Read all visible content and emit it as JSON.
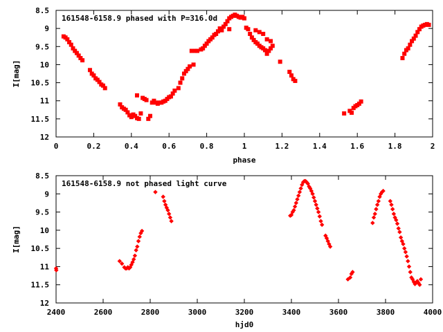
{
  "chart_data": [
    {
      "type": "scatter",
      "title": "161548-6158.9 phased with P=316.0d",
      "xlabel": "phase",
      "ylabel": "I[mag]",
      "xlim": [
        0,
        2
      ],
      "ylim": [
        12,
        8.5
      ],
      "y_inverted": true,
      "xticks": [
        "0",
        "0.2",
        "0.4",
        "0.6",
        "0.8",
        "1",
        "1.2",
        "1.4",
        "1.6",
        "1.8",
        "2"
      ],
      "yticks": [
        "8.5",
        "9",
        "9.5",
        "10",
        "10.5",
        "11",
        "11.5",
        "12"
      ],
      "marker": "filled-square",
      "color": "#ff0000",
      "series": [
        {
          "points": [
            [
              0.04,
              9.22
            ],
            [
              0.05,
              9.25
            ],
            [
              0.06,
              9.3
            ],
            [
              0.07,
              9.38
            ],
            [
              0.08,
              9.45
            ],
            [
              0.09,
              9.55
            ],
            [
              0.1,
              9.62
            ],
            [
              0.11,
              9.68
            ],
            [
              0.12,
              9.75
            ],
            [
              0.13,
              9.82
            ],
            [
              0.14,
              9.88
            ],
            [
              0.18,
              10.15
            ],
            [
              0.19,
              10.25
            ],
            [
              0.2,
              10.3
            ],
            [
              0.21,
              10.38
            ],
            [
              0.22,
              10.42
            ],
            [
              0.23,
              10.48
            ],
            [
              0.24,
              10.55
            ],
            [
              0.25,
              10.58
            ],
            [
              0.26,
              10.65
            ],
            [
              0.34,
              11.1
            ],
            [
              0.35,
              11.18
            ],
            [
              0.36,
              11.22
            ],
            [
              0.37,
              11.25
            ],
            [
              0.38,
              11.32
            ],
            [
              0.39,
              11.4
            ],
            [
              0.4,
              11.45
            ],
            [
              0.41,
              11.38
            ],
            [
              0.42,
              11.42
            ],
            [
              0.43,
              11.48
            ],
            [
              0.44,
              11.5
            ],
            [
              0.45,
              11.35
            ],
            [
              0.43,
              10.85
            ],
            [
              0.46,
              10.92
            ],
            [
              0.47,
              10.95
            ],
            [
              0.48,
              10.98
            ],
            [
              0.49,
              11.5
            ],
            [
              0.5,
              11.42
            ],
            [
              0.51,
              11.05
            ],
            [
              0.52,
              11.0
            ],
            [
              0.53,
              11.05
            ],
            [
              0.54,
              11.08
            ],
            [
              0.55,
              11.05
            ],
            [
              0.56,
              11.05
            ],
            [
              0.57,
              11.02
            ],
            [
              0.58,
              11.0
            ],
            [
              0.59,
              10.95
            ],
            [
              0.6,
              10.9
            ],
            [
              0.61,
              10.88
            ],
            [
              0.62,
              10.8
            ],
            [
              0.63,
              10.72
            ],
            [
              0.65,
              10.65
            ],
            [
              0.66,
              10.5
            ],
            [
              0.67,
              10.38
            ],
            [
              0.68,
              10.25
            ],
            [
              0.69,
              10.18
            ],
            [
              0.7,
              10.12
            ],
            [
              0.71,
              10.05
            ],
            [
              0.72,
              9.62
            ],
            [
              0.73,
              10.0
            ],
            [
              0.74,
              9.62
            ],
            [
              0.75,
              9.62
            ],
            [
              0.77,
              9.58
            ],
            [
              0.78,
              9.55
            ],
            [
              0.79,
              9.48
            ],
            [
              0.8,
              9.42
            ],
            [
              0.81,
              9.35
            ],
            [
              0.82,
              9.3
            ],
            [
              0.83,
              9.25
            ],
            [
              0.84,
              9.18
            ],
            [
              0.85,
              9.15
            ],
            [
              0.86,
              9.08
            ],
            [
              0.87,
              9.0
            ],
            [
              0.89,
              8.95
            ],
            [
              0.9,
              8.88
            ],
            [
              0.91,
              8.8
            ],
            [
              0.92,
              8.72
            ],
            [
              0.93,
              8.68
            ],
            [
              0.94,
              8.65
            ],
            [
              0.95,
              8.62
            ],
            [
              0.96,
              8.65
            ],
            [
              0.97,
              8.68
            ],
            [
              0.98,
              8.7
            ],
            [
              0.99,
              8.68
            ],
            [
              1.0,
              8.72
            ],
            [
              0.88,
              9.05
            ],
            [
              0.92,
              9.02
            ],
            [
              1.01,
              8.98
            ],
            [
              1.02,
              9.02
            ],
            [
              1.03,
              9.15
            ],
            [
              1.04,
              9.25
            ],
            [
              1.05,
              9.32
            ],
            [
              1.06,
              9.38
            ],
            [
              1.07,
              9.42
            ],
            [
              1.08,
              9.48
            ],
            [
              1.09,
              9.52
            ],
            [
              1.1,
              9.55
            ],
            [
              1.11,
              9.6
            ],
            [
              1.12,
              9.7
            ],
            [
              1.13,
              9.62
            ],
            [
              1.14,
              9.55
            ],
            [
              1.06,
              9.05
            ],
            [
              1.08,
              9.1
            ],
            [
              1.1,
              9.15
            ],
            [
              1.12,
              9.3
            ],
            [
              1.14,
              9.35
            ],
            [
              1.15,
              9.48
            ],
            [
              1.19,
              9.92
            ],
            [
              1.24,
              10.2
            ],
            [
              1.25,
              10.3
            ],
            [
              1.26,
              10.4
            ],
            [
              1.27,
              10.45
            ],
            [
              1.53,
              11.35
            ],
            [
              1.56,
              11.28
            ],
            [
              1.57,
              11.33
            ],
            [
              1.58,
              11.2
            ],
            [
              1.59,
              11.15
            ],
            [
              1.6,
              11.12
            ],
            [
              1.61,
              11.08
            ],
            [
              1.62,
              11.02
            ],
            [
              1.84,
              9.82
            ],
            [
              1.85,
              9.7
            ],
            [
              1.86,
              9.6
            ],
            [
              1.87,
              9.55
            ],
            [
              1.88,
              9.45
            ],
            [
              1.89,
              9.35
            ],
            [
              1.9,
              9.28
            ],
            [
              1.91,
              9.2
            ],
            [
              1.92,
              9.1
            ],
            [
              1.93,
              9.02
            ],
            [
              1.94,
              8.95
            ],
            [
              1.95,
              8.92
            ],
            [
              1.96,
              8.9
            ],
            [
              1.97,
              8.88
            ],
            [
              1.98,
              8.9
            ]
          ]
        }
      ]
    },
    {
      "type": "scatter",
      "title": "161548-6158.9 not phased light curve",
      "xlabel": "hjd0",
      "ylabel": "I[mag]",
      "xlim": [
        2400,
        4000
      ],
      "ylim": [
        12,
        8.5
      ],
      "y_inverted": true,
      "xticks": [
        "2400",
        "2600",
        "2800",
        "3000",
        "3200",
        "3400",
        "3600",
        "3800",
        "4000"
      ],
      "yticks": [
        "8.5",
        "9",
        "9.5",
        "10",
        "10.5",
        "11",
        "11.5",
        "12"
      ],
      "marker": "small-diamond",
      "color": "#ff0000",
      "series": [
        {
          "points": [
            [
              2400,
              11.05
            ],
            [
              2401,
              11.1
            ],
            [
              2670,
              10.85
            ],
            [
              2680,
              10.92
            ],
            [
              2690,
              11.02
            ],
            [
              2695,
              11.05
            ],
            [
              2700,
              11.05
            ],
            [
              2705,
              11.02
            ],
            [
              2710,
              11.05
            ],
            [
              2715,
              11.02
            ],
            [
              2720,
              10.95
            ],
            [
              2725,
              10.88
            ],
            [
              2730,
              10.8
            ],
            [
              2735,
              10.7
            ],
            [
              2740,
              10.55
            ],
            [
              2745,
              10.45
            ],
            [
              2750,
              10.3
            ],
            [
              2755,
              10.18
            ],
            [
              2760,
              10.08
            ],
            [
              2765,
              10.02
            ],
            [
              2822,
              8.95
            ],
            [
              2855,
              9.08
            ],
            [
              2860,
              9.2
            ],
            [
              2865,
              9.3
            ],
            [
              2870,
              9.38
            ],
            [
              2875,
              9.45
            ],
            [
              2880,
              9.55
            ],
            [
              2885,
              9.65
            ],
            [
              2890,
              9.75
            ],
            [
              3395,
              9.6
            ],
            [
              3400,
              9.58
            ],
            [
              3405,
              9.5
            ],
            [
              3410,
              9.45
            ],
            [
              3415,
              9.35
            ],
            [
              3420,
              9.25
            ],
            [
              3425,
              9.15
            ],
            [
              3430,
              9.05
            ],
            [
              3435,
              8.95
            ],
            [
              3440,
              8.85
            ],
            [
              3445,
              8.75
            ],
            [
              3450,
              8.68
            ],
            [
              3455,
              8.65
            ],
            [
              3460,
              8.65
            ],
            [
              3465,
              8.68
            ],
            [
              3470,
              8.72
            ],
            [
              3475,
              8.8
            ],
            [
              3480,
              8.85
            ],
            [
              3485,
              8.92
            ],
            [
              3490,
              9.0
            ],
            [
              3495,
              9.1
            ],
            [
              3500,
              9.2
            ],
            [
              3505,
              9.3
            ],
            [
              3510,
              9.4
            ],
            [
              3515,
              9.5
            ],
            [
              3520,
              9.62
            ],
            [
              3525,
              9.75
            ],
            [
              3530,
              9.85
            ],
            [
              3545,
              10.15
            ],
            [
              3550,
              10.22
            ],
            [
              3555,
              10.3
            ],
            [
              3560,
              10.38
            ],
            [
              3565,
              10.45
            ],
            [
              3640,
              11.35
            ],
            [
              3650,
              11.3
            ],
            [
              3655,
              11.2
            ],
            [
              3660,
              11.15
            ],
            [
              3745,
              9.8
            ],
            [
              3750,
              9.65
            ],
            [
              3755,
              9.55
            ],
            [
              3760,
              9.42
            ],
            [
              3765,
              9.3
            ],
            [
              3770,
              9.2
            ],
            [
              3775,
              9.08
            ],
            [
              3780,
              9.0
            ],
            [
              3785,
              8.95
            ],
            [
              3790,
              8.92
            ],
            [
              3820,
              9.2
            ],
            [
              3825,
              9.3
            ],
            [
              3830,
              9.42
            ],
            [
              3835,
              9.55
            ],
            [
              3840,
              9.65
            ],
            [
              3845,
              9.72
            ],
            [
              3850,
              9.82
            ],
            [
              3855,
              9.95
            ],
            [
              3860,
              10.05
            ],
            [
              3865,
              10.2
            ],
            [
              3870,
              10.3
            ],
            [
              3875,
              10.38
            ],
            [
              3880,
              10.5
            ],
            [
              3885,
              10.6
            ],
            [
              3890,
              10.72
            ],
            [
              3895,
              10.85
            ],
            [
              3900,
              11.0
            ],
            [
              3905,
              11.15
            ],
            [
              3910,
              11.3
            ],
            [
              3915,
              11.35
            ],
            [
              3920,
              11.42
            ],
            [
              3925,
              11.48
            ],
            [
              3930,
              11.45
            ],
            [
              3935,
              11.4
            ],
            [
              3940,
              11.45
            ],
            [
              3945,
              11.5
            ],
            [
              3950,
              11.35
            ]
          ]
        }
      ]
    }
  ]
}
